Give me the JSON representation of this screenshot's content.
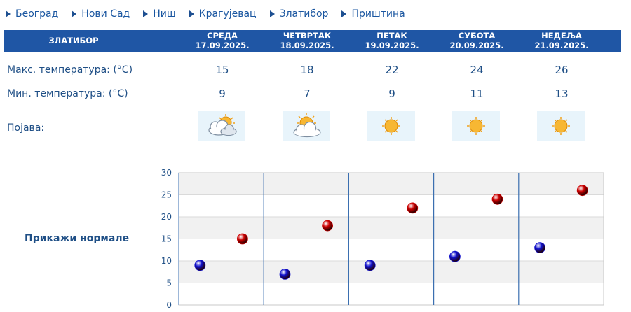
{
  "nav": {
    "items": [
      {
        "label": "Београд"
      },
      {
        "label": "Нови Сад"
      },
      {
        "label": "Ниш"
      },
      {
        "label": "Крагујевац"
      },
      {
        "label": "Златибор"
      },
      {
        "label": "Приштина"
      }
    ]
  },
  "forecast": {
    "city": "ЗЛАТИБОР",
    "days": [
      {
        "name": "СРЕДА",
        "date": "17.09.2025.",
        "max": "15",
        "min": "9",
        "icon": "partly-cloudy-icon"
      },
      {
        "name": "ЧЕТВРТАК",
        "date": "18.09.2025.",
        "max": "18",
        "min": "7",
        "icon": "sun-behind-cloud-icon"
      },
      {
        "name": "ПЕТАК",
        "date": "19.09.2025.",
        "max": "22",
        "min": "9",
        "icon": "sun-icon"
      },
      {
        "name": "СУБОТА",
        "date": "20.09.2025.",
        "max": "24",
        "min": "11",
        "icon": "sun-icon"
      },
      {
        "name": "НЕДЕЉА",
        "date": "21.09.2025.",
        "max": "26",
        "min": "13",
        "icon": "sun-icon"
      }
    ],
    "labels": {
      "max": "Макс. температура: (°C)",
      "min": "Мин. температура: (°C)",
      "phenomenon": "Појава:"
    }
  },
  "show_normals_link": "Прикажи нормале",
  "colors": {
    "header": "#1f56a5",
    "text": "#1f4f86",
    "max_marker": "#cc0000",
    "min_marker": "#1010cc",
    "icon_bg": "#e8f4fb"
  },
  "chart_data": {
    "type": "scatter",
    "ylim": [
      0,
      30
    ],
    "yticks": [
      "0",
      "5",
      "10",
      "15",
      "20",
      "25",
      "30"
    ],
    "grid": true,
    "series": [
      {
        "values": [
          15,
          18,
          22,
          24,
          26
        ],
        "color": "#cc0000"
      },
      {
        "values": [
          9,
          7,
          9,
          11,
          13
        ],
        "color": "#1010cc"
      }
    ]
  }
}
